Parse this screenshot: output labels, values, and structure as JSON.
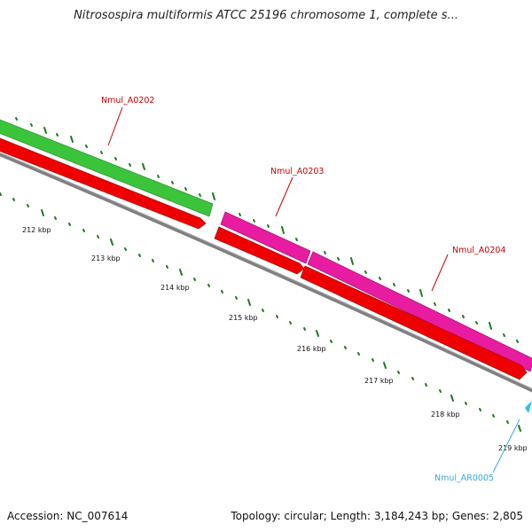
{
  "title": "Nitrosospira multiformis ATCC 25196 chromosome 1, complete s...",
  "footer": {
    "accession": "Accession: NC_007614",
    "summary": "Topology: circular; Length: 3,184,243 bp; Genes: 2,805"
  },
  "colors": {
    "gene_green": "#3bc43b",
    "gene_magenta": "#e81ca0",
    "cds_red": "#ee0000",
    "backbone": "#808080",
    "tick_green": "#1f7a1f",
    "label_red": "#cc0000",
    "label_cyan": "#33aadd",
    "arrow_cyan": "#33bbee"
  },
  "scale_labels": [
    "212 kbp",
    "213 kbp",
    "214 kbp",
    "215 kbp",
    "216 kbp",
    "217 kbp",
    "218 kbp",
    "219 kbp"
  ],
  "features": [
    {
      "id": "gene-a0202",
      "label": "Nmul_A0202"
    },
    {
      "id": "gene-a0203",
      "label": "Nmul_A0203"
    },
    {
      "id": "gene-a0204",
      "label": "Nmul_A0204"
    },
    {
      "id": "rna-ar0005",
      "label": "Nmul_AR0005"
    }
  ]
}
